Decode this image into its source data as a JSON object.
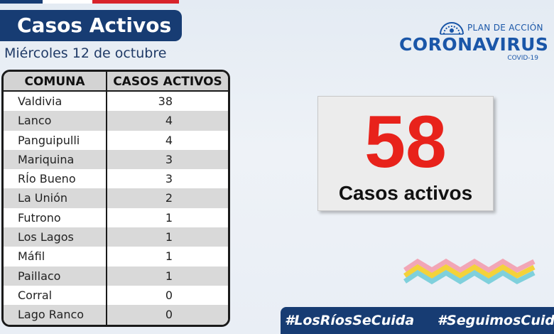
{
  "header": {
    "title": "Casos Activos",
    "date": "Miércoles 12 de octubre"
  },
  "table": {
    "columns": [
      "COMUNA",
      "CASOS ACTIVOS"
    ],
    "rows": [
      {
        "comuna": "Valdivia",
        "casos": "38"
      },
      {
        "comuna": "Lanco",
        "casos": "4"
      },
      {
        "comuna": "Panguipulli",
        "casos": "4"
      },
      {
        "comuna": "Mariquina",
        "casos": "3"
      },
      {
        "comuna": "RÍo Bueno",
        "casos": "3"
      },
      {
        "comuna": "La Unión",
        "casos": "2"
      },
      {
        "comuna": "Futrono",
        "casos": "1"
      },
      {
        "comuna": "Los Lagos",
        "casos": "1"
      },
      {
        "comuna": "Máfil",
        "casos": "1"
      },
      {
        "comuna": "Paillaco",
        "casos": "1"
      },
      {
        "comuna": "Corral",
        "casos": "0"
      },
      {
        "comuna": "Lago Ranco",
        "casos": "0"
      }
    ]
  },
  "summary": {
    "total": "58",
    "label": "Casos activos"
  },
  "logo": {
    "plan": "PLAN DE ACCIÓN",
    "name": "CORONAVIRUS",
    "sub": "COVID-19"
  },
  "footer": {
    "hashtag_1": "#LosRíosSeCuida",
    "hashtag_2": "#SeguimosCuidándonos"
  },
  "colors": {
    "navy": "#173c73",
    "accent_red": "#e8221b",
    "logo_blue": "#1a56a8"
  }
}
